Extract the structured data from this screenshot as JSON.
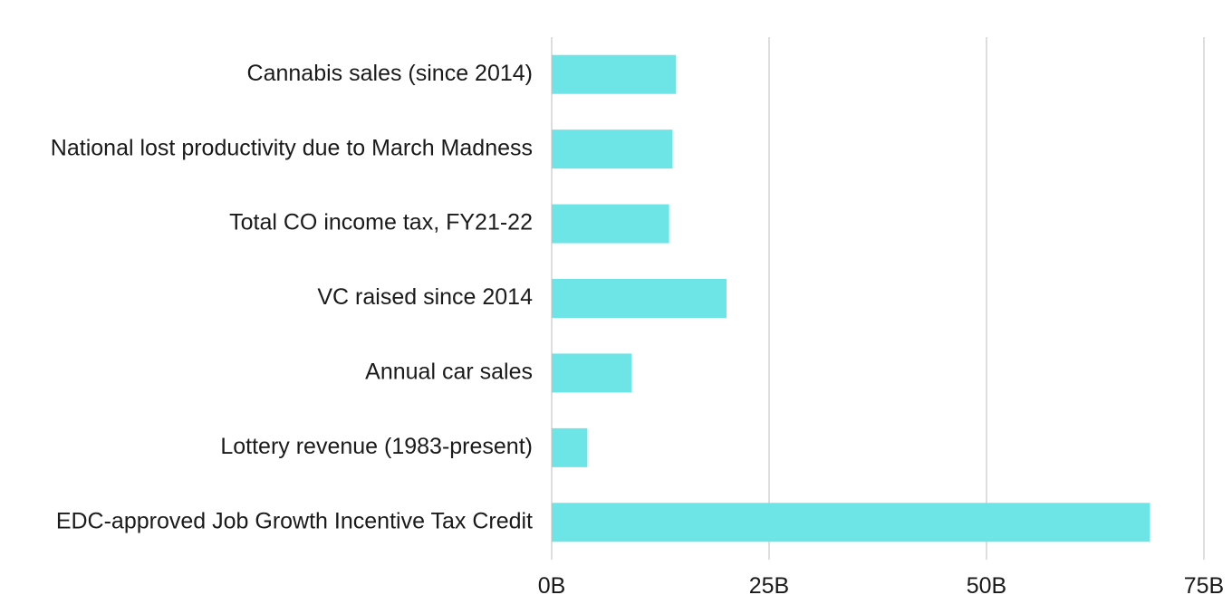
{
  "chart_data": {
    "type": "bar",
    "orientation": "horizontal",
    "title": "",
    "xlabel": "",
    "ylabel": "",
    "categories": [
      "Cannabis sales (since 2014)",
      "National lost productivity due to March Madness",
      "Total CO income tax, FY21-22",
      "VC raised since 2014",
      "Annual car sales",
      "Lottery revenue (1983-present)",
      "EDC-approved Job Growth Incentive Tax Credit"
    ],
    "values": [
      14.3,
      13.9,
      13.5,
      20.1,
      9.2,
      4.1,
      68.8
    ],
    "value_unit": "billions",
    "xlim": [
      0,
      75
    ],
    "x_ticks": [
      {
        "value": 0,
        "label": "0B"
      },
      {
        "value": 25,
        "label": "25B"
      },
      {
        "value": 50,
        "label": "50B"
      },
      {
        "value": 75,
        "label": "75B"
      }
    ],
    "bar_color": "#6de4e6",
    "grid": "vertical",
    "legend": "none"
  }
}
